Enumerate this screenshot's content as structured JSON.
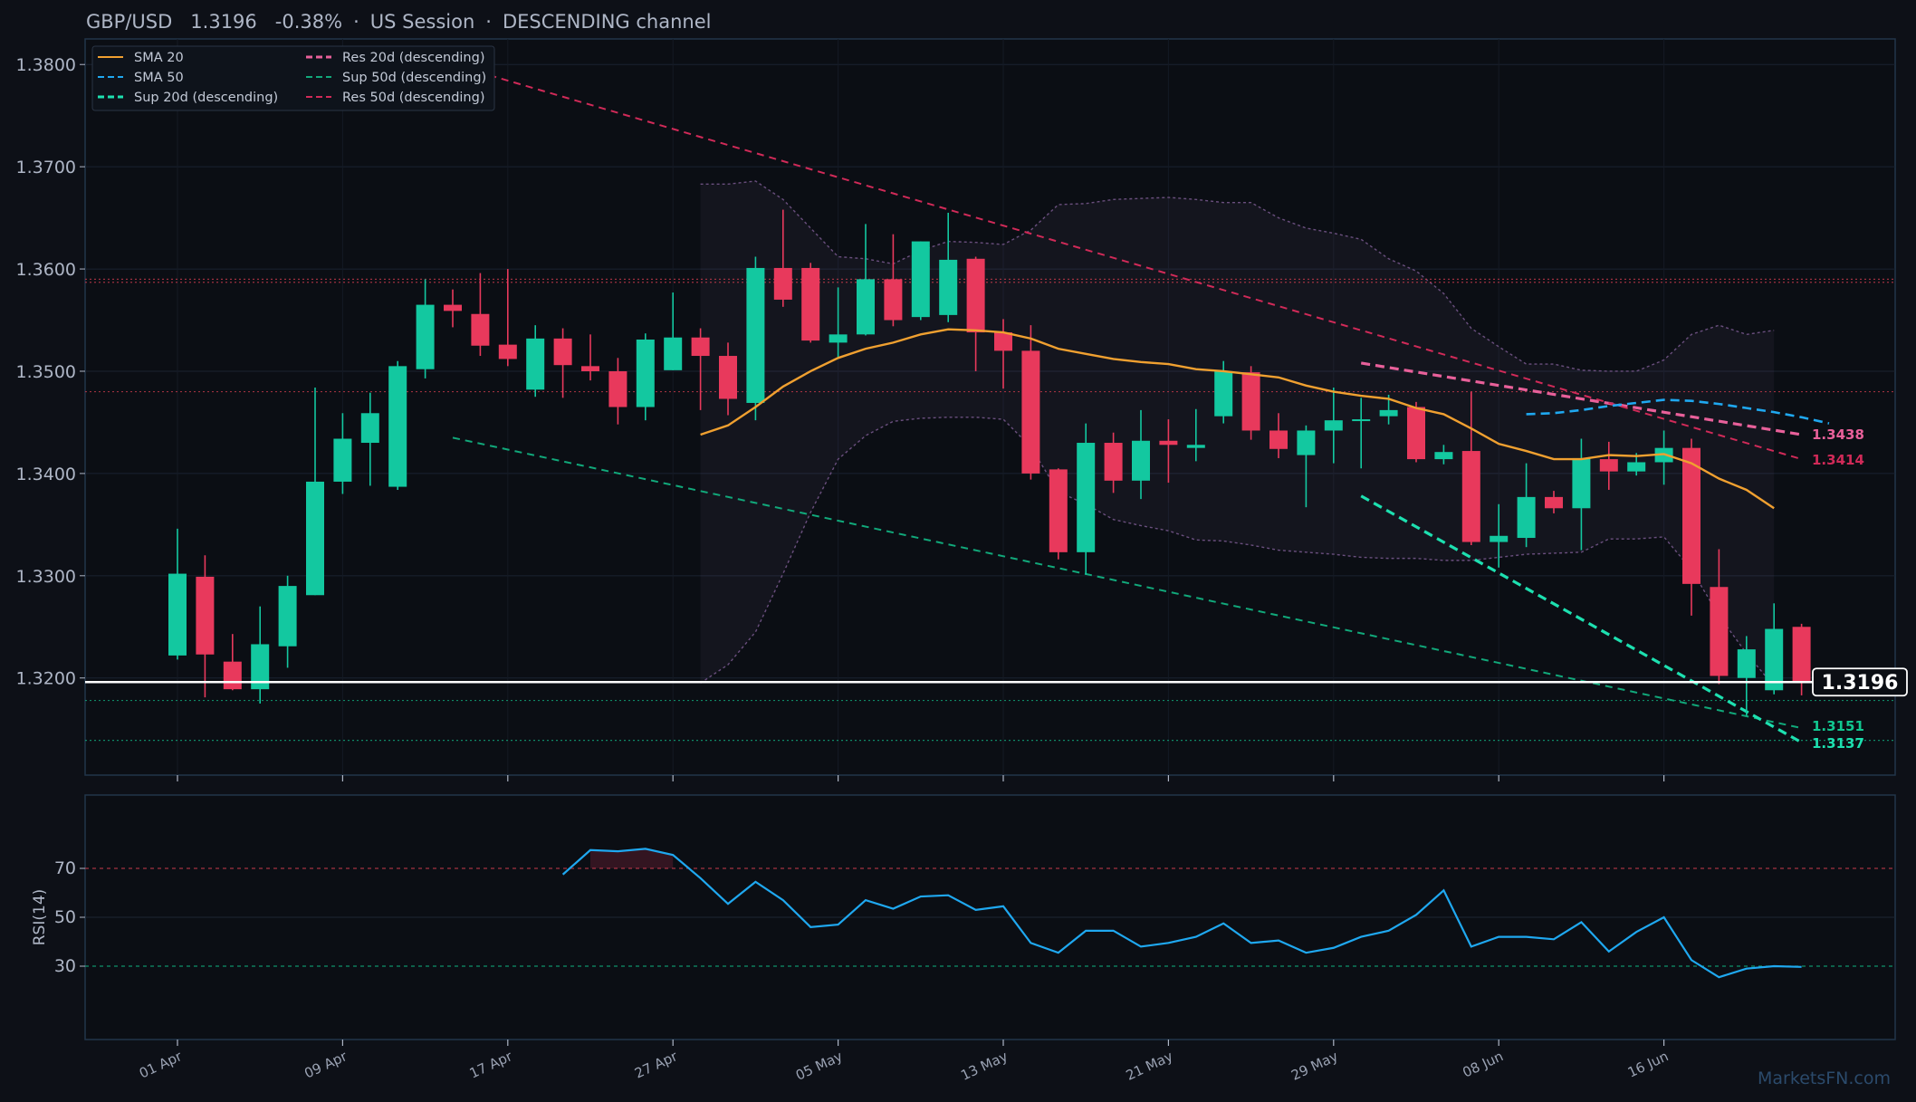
{
  "title": {
    "symbol": "GBP/USD",
    "price": "1.3196",
    "change": "-0.38%",
    "sep1": "·",
    "session": "US Session",
    "sep2": "·",
    "channel": "DESCENDING channel"
  },
  "watermark": "MarketsFN.com",
  "colors": {
    "background": "#0d1017",
    "up": "#13c8a0",
    "down": "#e8395c",
    "sma20": "#f0a030",
    "sma50": "#1fa8f0",
    "res20": "#e8609a",
    "res50": "#d02a58",
    "sup20": "#1de0b0",
    "sup50": "#11a87a",
    "rsi": "#1fa8f0",
    "frame": "#22354a"
  },
  "chart_data": {
    "type": "candlestick",
    "ylim": [
      1.3105,
      1.3825
    ],
    "yticks": [
      "1.3200",
      "1.3300",
      "1.3400",
      "1.3500",
      "1.3600",
      "1.3700",
      "1.3800"
    ],
    "xticks": [
      {
        "label": "01 Apr",
        "index": 0
      },
      {
        "label": "09 Apr",
        "index": 6
      },
      {
        "label": "17 Apr",
        "index": 12
      },
      {
        "label": "27 Apr",
        "index": 18
      },
      {
        "label": "05 May",
        "index": 24
      },
      {
        "label": "13 May",
        "index": 30
      },
      {
        "label": "21 May",
        "index": 36
      },
      {
        "label": "29 May",
        "index": 42
      },
      {
        "label": "08 Jun",
        "index": 48
      },
      {
        "label": "16 Jun",
        "index": 54
      }
    ],
    "candles": [
      {
        "o": 1.3222,
        "h": 1.3346,
        "l": 1.3218,
        "c": 1.3302
      },
      {
        "o": 1.3299,
        "h": 1.332,
        "l": 1.3181,
        "c": 1.3223
      },
      {
        "o": 1.3216,
        "h": 1.3243,
        "l": 1.3188,
        "c": 1.3189
      },
      {
        "o": 1.3189,
        "h": 1.327,
        "l": 1.3175,
        "c": 1.3233
      },
      {
        "o": 1.3231,
        "h": 1.33,
        "l": 1.321,
        "c": 1.329
      },
      {
        "o": 1.3281,
        "h": 1.3484,
        "l": 1.3281,
        "c": 1.3392
      },
      {
        "o": 1.3392,
        "h": 1.3459,
        "l": 1.338,
        "c": 1.3434
      },
      {
        "o": 1.343,
        "h": 1.3479,
        "l": 1.3388,
        "c": 1.3459
      },
      {
        "o": 1.3387,
        "h": 1.351,
        "l": 1.3384,
        "c": 1.3505
      },
      {
        "o": 1.3502,
        "h": 1.359,
        "l": 1.3493,
        "c": 1.3565
      },
      {
        "o": 1.3565,
        "h": 1.358,
        "l": 1.3543,
        "c": 1.3559
      },
      {
        "o": 1.3556,
        "h": 1.3596,
        "l": 1.3515,
        "c": 1.3525
      },
      {
        "o": 1.3526,
        "h": 1.36,
        "l": 1.3505,
        "c": 1.3512
      },
      {
        "o": 1.3482,
        "h": 1.3545,
        "l": 1.3475,
        "c": 1.3532
      },
      {
        "o": 1.3532,
        "h": 1.3542,
        "l": 1.3474,
        "c": 1.3506
      },
      {
        "o": 1.3505,
        "h": 1.3536,
        "l": 1.3491,
        "c": 1.35
      },
      {
        "o": 1.35,
        "h": 1.3513,
        "l": 1.3448,
        "c": 1.3465
      },
      {
        "o": 1.3465,
        "h": 1.3537,
        "l": 1.3452,
        "c": 1.3531
      },
      {
        "o": 1.3501,
        "h": 1.3577,
        "l": 1.3501,
        "c": 1.3533
      },
      {
        "o": 1.3533,
        "h": 1.3542,
        "l": 1.3462,
        "c": 1.3515
      },
      {
        "o": 1.3515,
        "h": 1.3528,
        "l": 1.3457,
        "c": 1.3473
      },
      {
        "o": 1.3469,
        "h": 1.3612,
        "l": 1.3452,
        "c": 1.3601
      },
      {
        "o": 1.3601,
        "h": 1.3658,
        "l": 1.3563,
        "c": 1.357
      },
      {
        "o": 1.3601,
        "h": 1.3606,
        "l": 1.3528,
        "c": 1.353
      },
      {
        "o": 1.3528,
        "h": 1.3582,
        "l": 1.3513,
        "c": 1.3536
      },
      {
        "o": 1.3536,
        "h": 1.3644,
        "l": 1.3535,
        "c": 1.359
      },
      {
        "o": 1.359,
        "h": 1.3634,
        "l": 1.3544,
        "c": 1.355
      },
      {
        "o": 1.3553,
        "h": 1.3627,
        "l": 1.355,
        "c": 1.3627
      },
      {
        "o": 1.3555,
        "h": 1.3655,
        "l": 1.3548,
        "c": 1.3609
      },
      {
        "o": 1.361,
        "h": 1.3612,
        "l": 1.35,
        "c": 1.3538
      },
      {
        "o": 1.3538,
        "h": 1.3551,
        "l": 1.3483,
        "c": 1.352
      },
      {
        "o": 1.352,
        "h": 1.3545,
        "l": 1.3394,
        "c": 1.34
      },
      {
        "o": 1.3404,
        "h": 1.3405,
        "l": 1.3316,
        "c": 1.3323
      },
      {
        "o": 1.3323,
        "h": 1.3449,
        "l": 1.3301,
        "c": 1.343
      },
      {
        "o": 1.343,
        "h": 1.344,
        "l": 1.3381,
        "c": 1.3393
      },
      {
        "o": 1.3393,
        "h": 1.3462,
        "l": 1.3375,
        "c": 1.3432
      },
      {
        "o": 1.3432,
        "h": 1.3453,
        "l": 1.3391,
        "c": 1.3428
      },
      {
        "o": 1.3425,
        "h": 1.3463,
        "l": 1.3412,
        "c": 1.3428
      },
      {
        "o": 1.3456,
        "h": 1.351,
        "l": 1.3449,
        "c": 1.35
      },
      {
        "o": 1.3499,
        "h": 1.3505,
        "l": 1.3433,
        "c": 1.3442
      },
      {
        "o": 1.3442,
        "h": 1.3459,
        "l": 1.3415,
        "c": 1.3424
      },
      {
        "o": 1.3418,
        "h": 1.3447,
        "l": 1.3367,
        "c": 1.3442
      },
      {
        "o": 1.3442,
        "h": 1.3484,
        "l": 1.341,
        "c": 1.3452
      },
      {
        "o": 1.3452,
        "h": 1.3474,
        "l": 1.3405,
        "c": 1.3453
      },
      {
        "o": 1.3456,
        "h": 1.3477,
        "l": 1.3448,
        "c": 1.3462
      },
      {
        "o": 1.3465,
        "h": 1.347,
        "l": 1.3411,
        "c": 1.3414
      },
      {
        "o": 1.3414,
        "h": 1.3428,
        "l": 1.3409,
        "c": 1.3421
      },
      {
        "o": 1.3422,
        "h": 1.348,
        "l": 1.333,
        "c": 1.3333
      },
      {
        "o": 1.3333,
        "h": 1.337,
        "l": 1.3308,
        "c": 1.3339
      },
      {
        "o": 1.3337,
        "h": 1.341,
        "l": 1.3328,
        "c": 1.3377
      },
      {
        "o": 1.3377,
        "h": 1.3383,
        "l": 1.3361,
        "c": 1.3366
      },
      {
        "o": 1.3366,
        "h": 1.3434,
        "l": 1.3325,
        "c": 1.3415
      },
      {
        "o": 1.3414,
        "h": 1.3431,
        "l": 1.3384,
        "c": 1.3402
      },
      {
        "o": 1.3402,
        "h": 1.342,
        "l": 1.3398,
        "c": 1.3411
      },
      {
        "o": 1.3411,
        "h": 1.3442,
        "l": 1.3389,
        "c": 1.3425
      },
      {
        "o": 1.3425,
        "h": 1.3434,
        "l": 1.3261,
        "c": 1.3292
      },
      {
        "o": 1.3289,
        "h": 1.3326,
        "l": 1.3194,
        "c": 1.3202
      },
      {
        "o": 1.32,
        "h": 1.3241,
        "l": 1.3163,
        "c": 1.3228
      },
      {
        "o": 1.3188,
        "h": 1.3273,
        "l": 1.3184,
        "c": 1.3248
      },
      {
        "o": 1.325,
        "h": 1.3253,
        "l": 1.3183,
        "c": 1.3196
      }
    ],
    "sma20": {
      "start": 19,
      "values": [
        1.3438,
        1.3447,
        1.3465,
        1.3485,
        1.35,
        1.3513,
        1.3522,
        1.3528,
        1.3536,
        1.3541,
        1.354,
        1.3538,
        1.3532,
        1.3522,
        1.3517,
        1.3512,
        1.3509,
        1.3507,
        1.3502,
        1.35,
        1.3497,
        1.3494,
        1.3486,
        1.348,
        1.3476,
        1.3473,
        1.3464,
        1.3458,
        1.3444,
        1.3429,
        1.3422,
        1.3414,
        1.3414,
        1.3418,
        1.3417,
        1.3419,
        1.341,
        1.3395,
        1.3384,
        1.3366
      ]
    },
    "sma50": {
      "start": 49,
      "values": [
        1.3458,
        1.3459,
        1.3462,
        1.3466,
        1.3469,
        1.3472,
        1.3471,
        1.3468,
        1.3464,
        1.346,
        1.3455,
        1.3449
      ]
    },
    "bollinger": {
      "start": 19,
      "upper": [
        1.3683,
        1.3683,
        1.3686,
        1.3668,
        1.364,
        1.3612,
        1.361,
        1.3605,
        1.3618,
        1.3627,
        1.3626,
        1.3624,
        1.3638,
        1.3663,
        1.3664,
        1.3668,
        1.3669,
        1.367,
        1.3668,
        1.3665,
        1.3665,
        1.365,
        1.364,
        1.3635,
        1.3629,
        1.361,
        1.3598,
        1.3576,
        1.3542,
        1.3524,
        1.3507,
        1.3507,
        1.3501,
        1.35,
        1.35,
        1.3511,
        1.3536,
        1.3545,
        1.3536,
        1.354
      ],
      "lower": [
        1.3195,
        1.3213,
        1.3245,
        1.3302,
        1.3362,
        1.3414,
        1.3437,
        1.3451,
        1.3454,
        1.3455,
        1.3455,
        1.3453,
        1.3426,
        1.3382,
        1.337,
        1.3355,
        1.3349,
        1.3344,
        1.3335,
        1.3334,
        1.333,
        1.3325,
        1.3323,
        1.3321,
        1.3318,
        1.3317,
        1.3317,
        1.3315,
        1.3315,
        1.3318,
        1.3321,
        1.3322,
        1.3323,
        1.3336,
        1.3336,
        1.3338,
        1.3306,
        1.3261,
        1.3224,
        1.3192
      ]
    },
    "trendlines": [
      {
        "name": "Res 20d (descending)",
        "from": [
          43,
          1.3508
        ],
        "to": [
          59,
          1.3438
        ],
        "style": "dashed",
        "width": "thick",
        "color": "#e8609a"
      },
      {
        "name": "Sup 50d (descending)",
        "from": [
          10,
          1.3435
        ],
        "to": [
          59,
          1.3151
        ],
        "style": "dashed",
        "width": "thin",
        "color": "#11a87a"
      },
      {
        "name": "Sup 20d (descending)",
        "from": [
          43,
          1.3378
        ],
        "to": [
          59,
          1.3137
        ],
        "style": "dashed",
        "width": "thick",
        "color": "#1de0b0"
      },
      {
        "name": "Res 50d (descending)",
        "from": [
          10,
          1.38
        ],
        "to": [
          59,
          1.3414
        ],
        "style": "dashed",
        "width": "thin",
        "color": "#d02a58"
      }
    ],
    "hlines": [
      {
        "value": 1.359,
        "color": "#c0394a",
        "style": "dotted"
      },
      {
        "value": 1.3587,
        "color": "#c0394a",
        "style": "dotted"
      },
      {
        "value": 1.348,
        "color": "#c0394a",
        "style": "dotted"
      },
      {
        "value": 1.3178,
        "color": "#11a87a",
        "style": "dotted"
      },
      {
        "value": 1.3139,
        "color": "#11a87a",
        "style": "dotted"
      }
    ],
    "current_price": {
      "value": 1.3196,
      "label": "1.3196"
    },
    "right_tags": [
      {
        "label": "1.3438",
        "value": 1.3438,
        "color": "#e8609a"
      },
      {
        "label": "1.3414",
        "value": 1.3414,
        "color": "#d02a58"
      },
      {
        "label": "1.3151",
        "value": 1.3151,
        "color": "#11c890"
      },
      {
        "label": "1.3137",
        "value": 1.3137,
        "color": "#1de0b0"
      }
    ],
    "legend": {
      "placement": "top-left",
      "items": [
        {
          "label": "SMA 20",
          "color": "#f0a030",
          "style": "solid"
        },
        {
          "label": "SMA 50",
          "color": "#1fa8f0",
          "style": "dashed"
        },
        {
          "label": "Sup 20d (descending)",
          "color": "#1de0b0",
          "style": "dashed"
        },
        {
          "label": "Res 20d (descending)",
          "color": "#e8609a",
          "style": "dashed"
        },
        {
          "label": "Sup 50d (descending)",
          "color": "#11a87a",
          "style": "dashed"
        },
        {
          "label": "Res 50d (descending)",
          "color": "#d02a58",
          "style": "dashed"
        }
      ]
    },
    "rsi": {
      "label": "RSI(14)",
      "ylim": [
        0,
        100
      ],
      "yticks": [
        "30",
        "50",
        "70"
      ],
      "start": 14,
      "values": [
        67.5,
        77.5,
        77,
        78,
        75.5,
        66,
        55.5,
        64.5,
        57,
        46,
        47,
        57,
        53.5,
        58.5,
        59,
        53,
        54.5,
        39.5,
        35.5,
        44.5,
        44.5,
        38,
        39.5,
        42,
        47.5,
        39.5,
        40.5,
        35.5,
        37.5,
        42,
        44.5,
        51,
        61,
        38,
        42,
        42,
        41,
        48,
        36,
        44,
        50,
        32.5,
        25.5,
        29,
        30,
        29.7
      ]
    }
  }
}
